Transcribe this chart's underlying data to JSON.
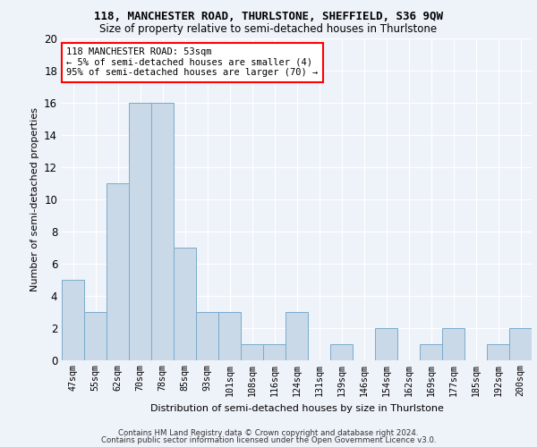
{
  "title1": "118, MANCHESTER ROAD, THURLSTONE, SHEFFIELD, S36 9QW",
  "title2": "Size of property relative to semi-detached houses in Thurlstone",
  "xlabel": "Distribution of semi-detached houses by size in Thurlstone",
  "ylabel": "Number of semi-detached properties",
  "categories": [
    "47sqm",
    "55sqm",
    "62sqm",
    "70sqm",
    "78sqm",
    "85sqm",
    "93sqm",
    "101sqm",
    "108sqm",
    "116sqm",
    "124sqm",
    "131sqm",
    "139sqm",
    "146sqm",
    "154sqm",
    "162sqm",
    "169sqm",
    "177sqm",
    "185sqm",
    "192sqm",
    "200sqm"
  ],
  "values": [
    5,
    3,
    11,
    16,
    16,
    7,
    3,
    3,
    1,
    1,
    3,
    0,
    1,
    0,
    2,
    0,
    1,
    2,
    0,
    1,
    2
  ],
  "bar_color": "#c9d9e8",
  "bar_edge_color": "#7aabcc",
  "background_color": "#eef2f9",
  "annotation_line1": "118 MANCHESTER ROAD: 53sqm",
  "annotation_line2": "← 5% of semi-detached houses are smaller (4)",
  "annotation_line3": "95% of semi-detached houses are larger (70) →",
  "annotation_box_color": "white",
  "annotation_box_edge_color": "red",
  "ylim": [
    0,
    20
  ],
  "yticks": [
    0,
    2,
    4,
    6,
    8,
    10,
    12,
    14,
    16,
    18,
    20
  ],
  "footer_line1": "Contains HM Land Registry data © Crown copyright and database right 2024.",
  "footer_line2": "Contains public sector information licensed under the Open Government Licence v3.0."
}
